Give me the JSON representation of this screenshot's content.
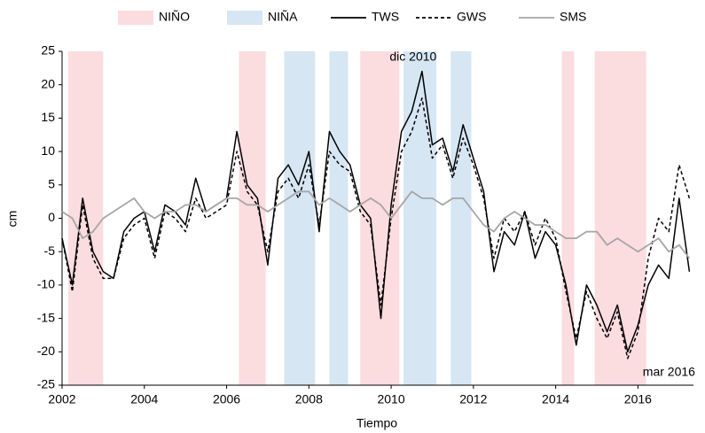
{
  "chart_data": {
    "type": "line",
    "x_label": "Tiempo",
    "y_label": "cm",
    "x": [
      2002,
      2002.25,
      2002.5,
      2002.75,
      2003,
      2003.25,
      2003.5,
      2003.75,
      2004,
      2004.25,
      2004.5,
      2004.75,
      2005,
      2005.25,
      2005.5,
      2005.75,
      2006,
      2006.25,
      2006.5,
      2006.75,
      2007,
      2007.25,
      2007.5,
      2007.75,
      2008,
      2008.25,
      2008.5,
      2008.75,
      2009,
      2009.25,
      2009.5,
      2009.75,
      2010,
      2010.25,
      2010.5,
      2010.75,
      2011,
      2011.25,
      2011.5,
      2011.75,
      2012,
      2012.25,
      2012.5,
      2012.75,
      2013,
      2013.25,
      2013.5,
      2013.75,
      2014,
      2014.25,
      2014.5,
      2014.75,
      2015,
      2015.25,
      2015.5,
      2015.75,
      2016,
      2016.25,
      2016.5,
      2016.75,
      2017,
      2017.25
    ],
    "shaded_periods": [
      {
        "name": "NIÑO",
        "color": "#fbdcdf",
        "ranges": [
          [
            2002.15,
            2003.0
          ],
          [
            2006.3,
            2006.95
          ],
          [
            2009.25,
            2010.2
          ],
          [
            2014.15,
            2014.45
          ],
          [
            2014.95,
            2016.2
          ]
        ]
      },
      {
        "name": "NIÑA",
        "color": "#d6e6f3",
        "ranges": [
          [
            2007.4,
            2008.15
          ],
          [
            2008.5,
            2008.95
          ],
          [
            2010.3,
            2011.1
          ],
          [
            2011.45,
            2011.95
          ]
        ]
      }
    ],
    "series": [
      {
        "name": "TWS",
        "color": "#000000",
        "dash": "solid",
        "values": [
          -3,
          -10,
          3,
          -5,
          -8,
          -9,
          -2,
          0,
          1,
          -5,
          2,
          1,
          -1,
          6,
          1,
          2,
          3,
          13,
          5,
          3,
          -7,
          6,
          8,
          5,
          10,
          -2,
          13,
          10,
          8,
          2,
          0,
          -15,
          2,
          13,
          16,
          22,
          11,
          12,
          7,
          14,
          9,
          4,
          -8,
          -2,
          -4,
          1,
          -6,
          -2,
          -4,
          -10,
          -19,
          -10,
          -13,
          -17,
          -13,
          -20,
          -16,
          -10,
          -7,
          -9,
          3,
          -8
        ]
      },
      {
        "name": "GWS",
        "color": "#000000",
        "dash": "dashed",
        "values": [
          -3,
          -11,
          2,
          -6,
          -9,
          -9,
          -3,
          -1,
          0,
          -6,
          1,
          0,
          -2,
          3,
          0,
          1,
          2,
          10,
          4,
          2,
          -5,
          4,
          6,
          3,
          8,
          -1,
          10,
          8,
          7,
          1,
          -1,
          -13,
          0,
          10,
          13,
          18,
          9,
          11,
          6,
          12,
          8,
          3,
          -6,
          0,
          -2,
          1,
          -4,
          0,
          -3,
          -11,
          -18,
          -11,
          -15,
          -18,
          -14,
          -21,
          -17,
          -6,
          0,
          -2,
          8,
          3
        ]
      },
      {
        "name": "SMS",
        "color": "#a6a6a6",
        "dash": "solid",
        "values": [
          1,
          0,
          -3,
          -2,
          0,
          1,
          2,
          3,
          1,
          0,
          1,
          1,
          2,
          2,
          1,
          2,
          3,
          3,
          2,
          2,
          1,
          2,
          3,
          4,
          4,
          2,
          3,
          2,
          1,
          2,
          3,
          2,
          0,
          2,
          4,
          3,
          3,
          2,
          3,
          3,
          1,
          -1,
          -2,
          0,
          1,
          0,
          -1,
          -1,
          -2,
          -3,
          -3,
          -2,
          -2,
          -4,
          -3,
          -4,
          -5,
          -4,
          -3,
          -5,
          -4,
          -6
        ]
      }
    ],
    "annotations": [
      {
        "text": "dic 2010",
        "x": 2010.75,
        "y": 22
      },
      {
        "text": "mar 2016",
        "x": 2016,
        "y": -21
      }
    ],
    "xlim": [
      2002,
      2017.35
    ],
    "ylim": [
      -25,
      25
    ],
    "xticks": [
      2002,
      2004,
      2006,
      2008,
      2010,
      2012,
      2014,
      2016
    ],
    "yticks": [
      -25,
      -20,
      -15,
      -10,
      -5,
      0,
      5,
      10,
      15,
      20,
      25
    ],
    "grid": false,
    "legend": "top"
  }
}
